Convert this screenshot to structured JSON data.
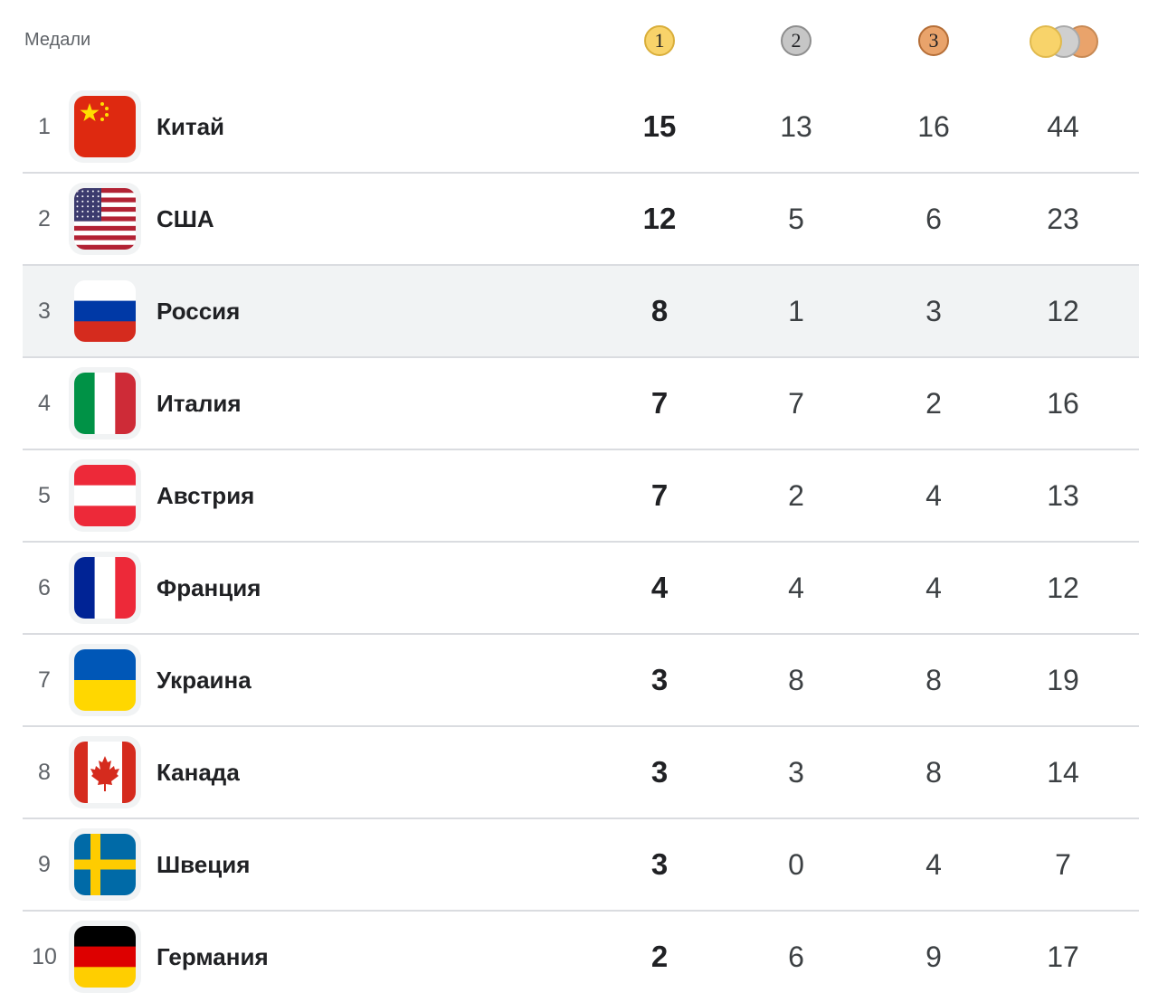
{
  "header": {
    "title": "Медали",
    "gold_label": "1",
    "silver_label": "2",
    "bronze_label": "3"
  },
  "colors": {
    "gold": "#f8d36a",
    "silver": "#c6c6c6",
    "bronze": "#e9a36b",
    "row_highlight": "#f1f3f4",
    "divider": "#dadce0"
  },
  "rows": [
    {
      "rank": "1",
      "country": "Китай",
      "flag": "china-flag-icon",
      "gold": "15",
      "silver": "13",
      "bronze": "16",
      "total": "44"
    },
    {
      "rank": "2",
      "country": "США",
      "flag": "usa-flag-icon",
      "gold": "12",
      "silver": "5",
      "bronze": "6",
      "total": "23"
    },
    {
      "rank": "3",
      "country": "Россия",
      "flag": "russia-flag-icon",
      "gold": "8",
      "silver": "1",
      "bronze": "3",
      "total": "12"
    },
    {
      "rank": "4",
      "country": "Италия",
      "flag": "italy-flag-icon",
      "gold": "7",
      "silver": "7",
      "bronze": "2",
      "total": "16"
    },
    {
      "rank": "5",
      "country": "Австрия",
      "flag": "austria-flag-icon",
      "gold": "7",
      "silver": "2",
      "bronze": "4",
      "total": "13"
    },
    {
      "rank": "6",
      "country": "Франция",
      "flag": "france-flag-icon",
      "gold": "4",
      "silver": "4",
      "bronze": "4",
      "total": "12"
    },
    {
      "rank": "7",
      "country": "Украина",
      "flag": "ukraine-flag-icon",
      "gold": "3",
      "silver": "8",
      "bronze": "8",
      "total": "19"
    },
    {
      "rank": "8",
      "country": "Канада",
      "flag": "canada-flag-icon",
      "gold": "3",
      "silver": "3",
      "bronze": "8",
      "total": "14"
    },
    {
      "rank": "9",
      "country": "Швеция",
      "flag": "sweden-flag-icon",
      "gold": "3",
      "silver": "0",
      "bronze": "4",
      "total": "7"
    },
    {
      "rank": "10",
      "country": "Германия",
      "flag": "germany-flag-icon",
      "gold": "2",
      "silver": "6",
      "bronze": "9",
      "total": "17"
    }
  ]
}
